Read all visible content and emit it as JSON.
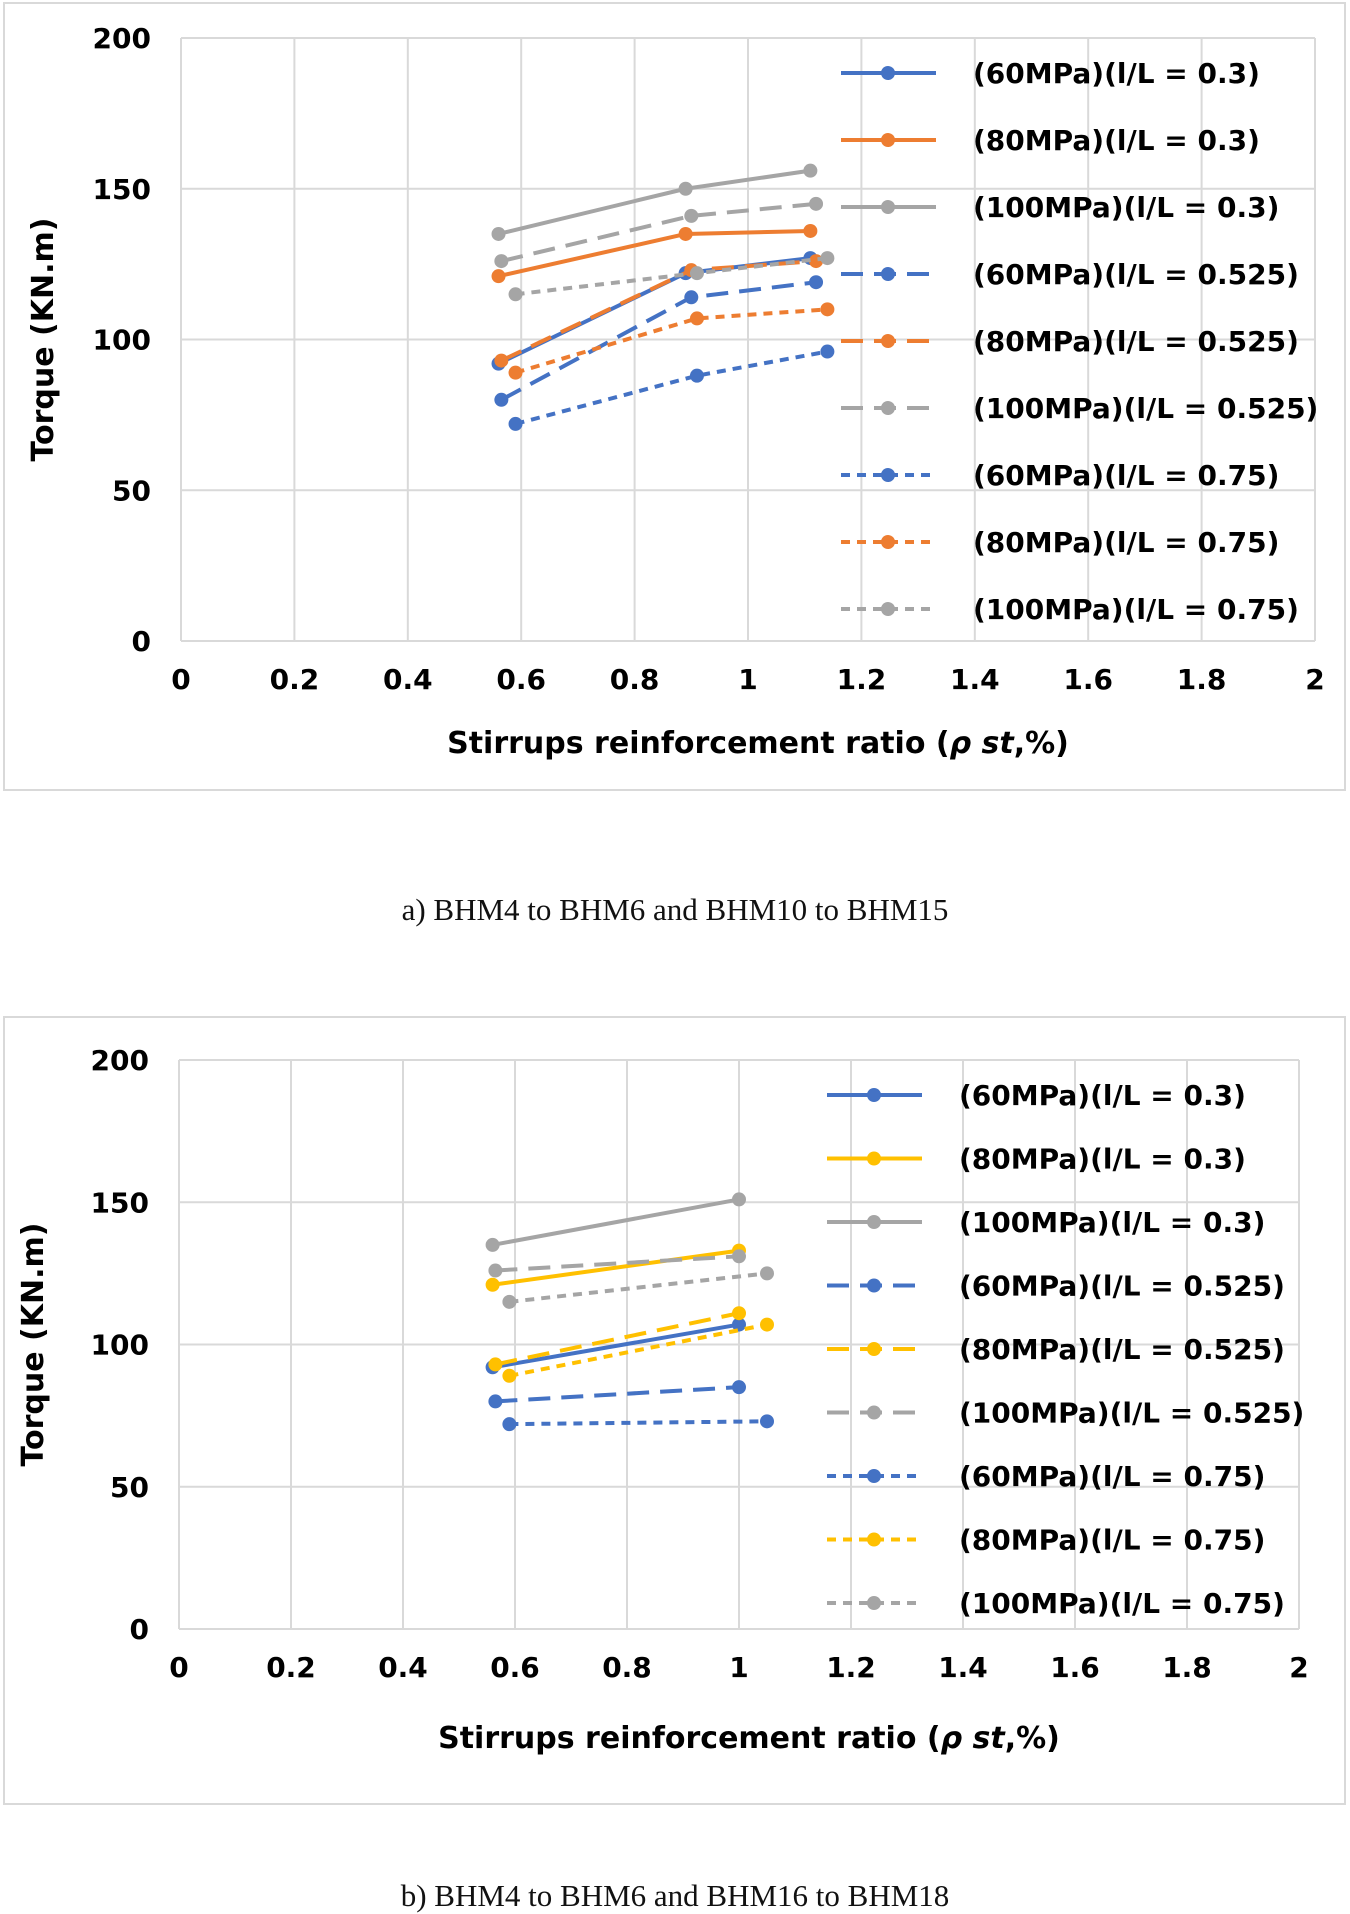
{
  "captions": {
    "a": "a)    BHM4 to BHM6 and BHM10 to BHM15",
    "b": "b)    BHM4 to BHM6 and BHM16 to BHM18"
  },
  "colors": {
    "blue": "#4472C4",
    "orange": "#ED7D31",
    "gray": "#A5A5A5",
    "yellow": "#FFC000",
    "grid": "#d9d9d9"
  },
  "chart_data": [
    {
      "type": "line",
      "title": "",
      "xlabel": "Stirrups reinforcement ratio (",
      "xlabel_symbol": "ρ st",
      "xlabel_tail": ",%)",
      "ylabel": "Torque (KN.m)",
      "xlim": [
        0,
        2
      ],
      "ylim": [
        0,
        200
      ],
      "xticks": [
        "0",
        "0.2",
        "0.4",
        "0.6",
        "0.8",
        "1",
        "1.2",
        "1.4",
        "1.6",
        "1.8",
        "2"
      ],
      "yticks": [
        "0",
        "50",
        "100",
        "150",
        "200"
      ],
      "grid": true,
      "legend_position": "right",
      "series": [
        {
          "name": "(60MPa)(l/L = 0.3)",
          "color": "#4472C4",
          "dash": "solid",
          "x": [
            0.56,
            0.89,
            1.11
          ],
          "y": [
            92,
            122,
            127
          ]
        },
        {
          "name": "(80MPa)(l/L = 0.3)",
          "color": "#ED7D31",
          "dash": "solid",
          "x": [
            0.56,
            0.89,
            1.11
          ],
          "y": [
            121,
            135,
            136
          ]
        },
        {
          "name": "(100MPa)(l/L = 0.3)",
          "color": "#A5A5A5",
          "dash": "solid",
          "x": [
            0.56,
            0.89,
            1.11
          ],
          "y": [
            135,
            150,
            156
          ]
        },
        {
          "name": "(60MPa)(l/L = 0.525)",
          "color": "#4472C4",
          "dash": "dash",
          "x": [
            0.565,
            0.9,
            1.12
          ],
          "y": [
            80,
            114,
            119
          ]
        },
        {
          "name": "(80MPa)(l/L = 0.525)",
          "color": "#ED7D31",
          "dash": "dash",
          "x": [
            0.565,
            0.9,
            1.12
          ],
          "y": [
            93,
            123,
            126
          ]
        },
        {
          "name": "(100MPa)(l/L = 0.525)",
          "color": "#A5A5A5",
          "dash": "dash",
          "x": [
            0.565,
            0.9,
            1.12
          ],
          "y": [
            126,
            141,
            145
          ]
        },
        {
          "name": "(60MPa)(l/L = 0.75)",
          "color": "#4472C4",
          "dash": "dot",
          "x": [
            0.59,
            0.91,
            1.14
          ],
          "y": [
            72,
            88,
            96
          ]
        },
        {
          "name": "(80MPa)(l/L = 0.75)",
          "color": "#ED7D31",
          "dash": "dot",
          "x": [
            0.59,
            0.91,
            1.14
          ],
          "y": [
            89,
            107,
            110
          ]
        },
        {
          "name": "(100MPa)(l/L = 0.75)",
          "color": "#A5A5A5",
          "dash": "dot",
          "x": [
            0.59,
            0.91,
            1.14
          ],
          "y": [
            115,
            122,
            127
          ]
        }
      ]
    },
    {
      "type": "line",
      "title": "",
      "xlabel": "Stirrups reinforcement ratio (",
      "xlabel_symbol": "ρ st",
      "xlabel_tail": ",%)",
      "ylabel": "Torque (KN.m)",
      "xlim": [
        0,
        2
      ],
      "ylim": [
        0,
        200
      ],
      "xticks": [
        "0",
        "0.2",
        "0.4",
        "0.6",
        "0.8",
        "1",
        "1.2",
        "1.4",
        "1.6",
        "1.8",
        "2"
      ],
      "yticks": [
        "0",
        "50",
        "100",
        "150",
        "200"
      ],
      "grid": true,
      "legend_position": "right",
      "series": [
        {
          "name": "(60MPa)(l/L = 0.3)",
          "color": "#4472C4",
          "dash": "solid",
          "x": [
            0.56,
            1.0
          ],
          "y": [
            92,
            107
          ]
        },
        {
          "name": "(80MPa)(l/L = 0.3)",
          "color": "#FFC000",
          "dash": "solid",
          "x": [
            0.56,
            1.0
          ],
          "y": [
            121,
            133
          ]
        },
        {
          "name": "(100MPa)(l/L = 0.3)",
          "color": "#A5A5A5",
          "dash": "solid",
          "x": [
            0.56,
            1.0
          ],
          "y": [
            135,
            151
          ]
        },
        {
          "name": "(60MPa)(l/L = 0.525)",
          "color": "#4472C4",
          "dash": "dash",
          "x": [
            0.565,
            1.0
          ],
          "y": [
            80,
            85
          ]
        },
        {
          "name": "(80MPa)(l/L = 0.525)",
          "color": "#FFC000",
          "dash": "dash",
          "x": [
            0.565,
            1.0
          ],
          "y": [
            93,
            111
          ]
        },
        {
          "name": "(100MPa)(l/L = 0.525)",
          "color": "#A5A5A5",
          "dash": "dash",
          "x": [
            0.565,
            1.0
          ],
          "y": [
            126,
            131
          ]
        },
        {
          "name": "(60MPa)(l/L = 0.75)",
          "color": "#4472C4",
          "dash": "dot",
          "x": [
            0.59,
            1.05
          ],
          "y": [
            72,
            73
          ]
        },
        {
          "name": "(80MPa)(l/L = 0.75)",
          "color": "#FFC000",
          "dash": "dot",
          "x": [
            0.59,
            1.05
          ],
          "y": [
            89,
            107
          ]
        },
        {
          "name": "(100MPa)(l/L = 0.75)",
          "color": "#A5A5A5",
          "dash": "dot",
          "x": [
            0.59,
            1.05
          ],
          "y": [
            115,
            125
          ]
        }
      ]
    }
  ]
}
